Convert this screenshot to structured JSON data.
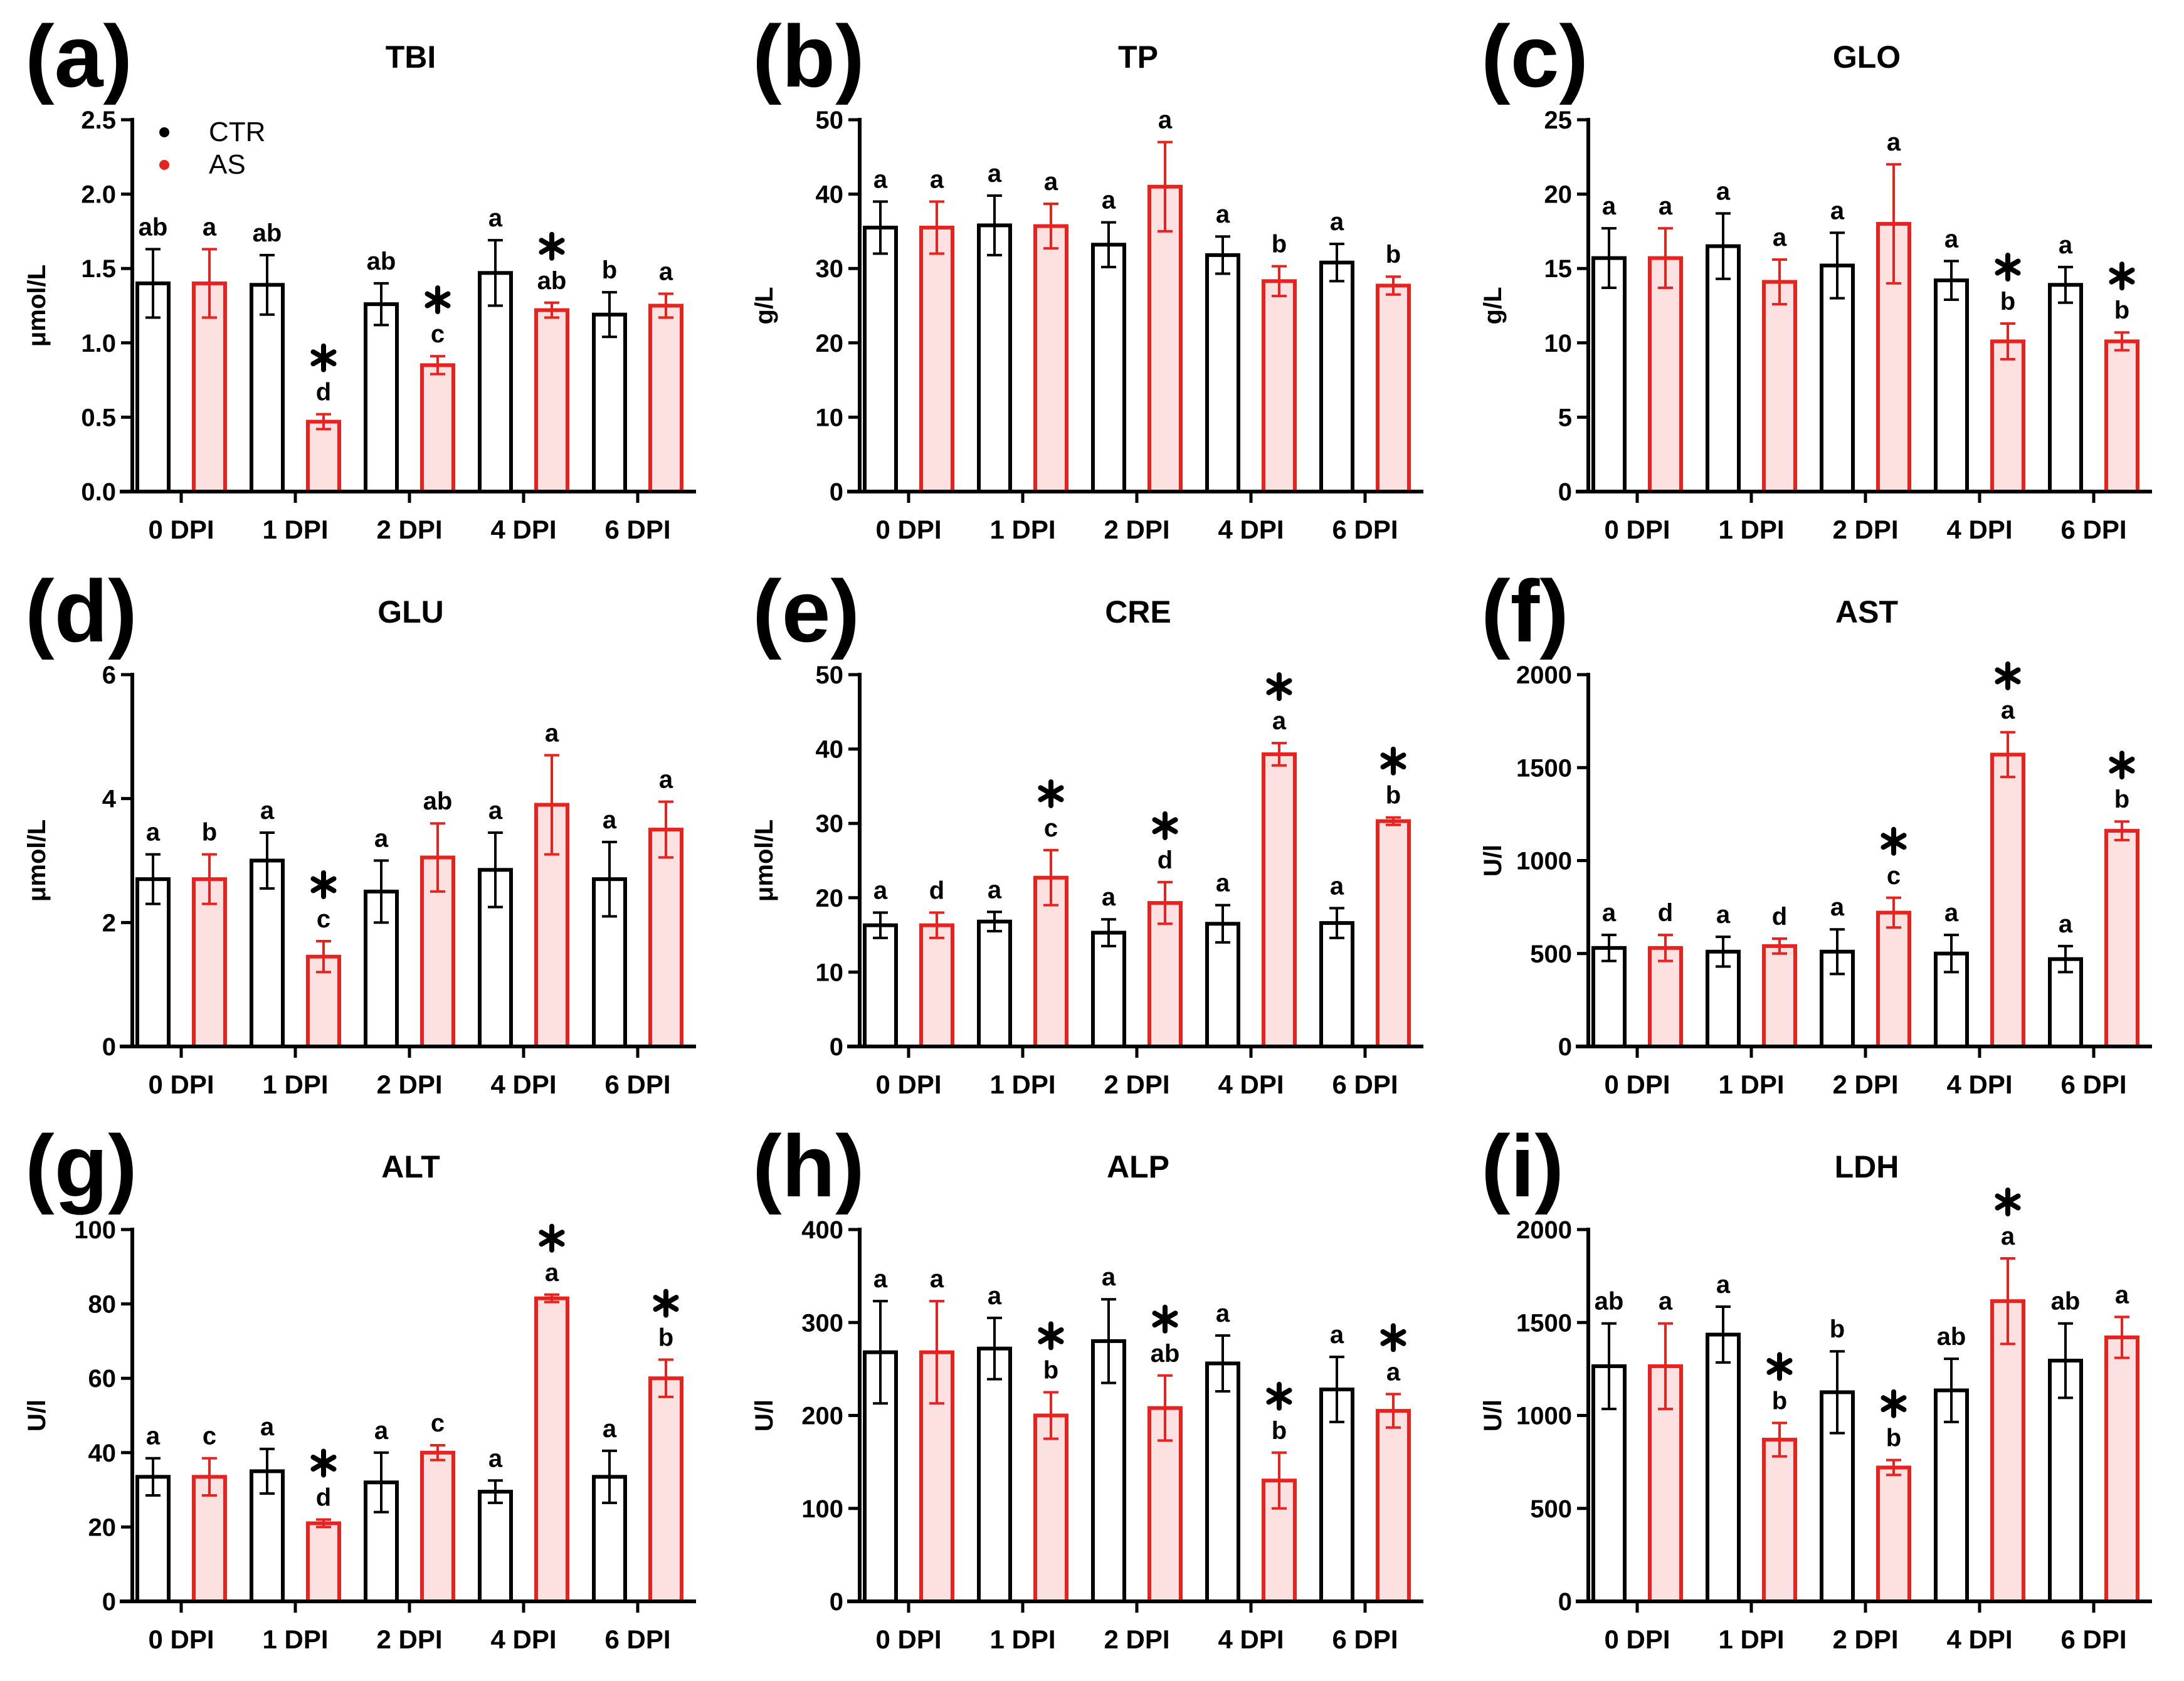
{
  "colors": {
    "ctr": "#000000",
    "as": "#e8231f",
    "as_fill": "#fde0e0",
    "ctr_fill": "#ffffff"
  },
  "legend": [
    {
      "label": "CTR",
      "color": "#000000"
    },
    {
      "label": "AS",
      "color": "#e8231f"
    }
  ],
  "chart_data": [
    {
      "type": "bar",
      "panel": "(a)",
      "title": "TBI",
      "ylabel": "μmol/L",
      "ylim": [
        0,
        2.5
      ],
      "yticks": [
        "0.0",
        "0.5",
        "1.0",
        "1.5",
        "2.0",
        "2.5"
      ],
      "ytick_values": [
        0,
        0.5,
        1,
        1.5,
        2,
        2.5
      ],
      "categories": [
        "0 DPI",
        "1 DPI",
        "2 DPI",
        "4 DPI",
        "6 DPI"
      ],
      "series": [
        {
          "name": "CTR",
          "values": [
            1.4,
            1.39,
            1.26,
            1.47,
            1.19
          ],
          "sd": [
            0.23,
            0.2,
            0.14,
            0.22,
            0.15
          ],
          "letters": [
            "ab",
            "ab",
            "ab",
            "a",
            "b"
          ],
          "stars": [
            false,
            false,
            false,
            false,
            false
          ]
        },
        {
          "name": "AS",
          "values": [
            1.4,
            0.47,
            0.85,
            1.22,
            1.25
          ],
          "sd": [
            0.23,
            0.05,
            0.06,
            0.05,
            0.08
          ],
          "letters": [
            "a",
            "d",
            "c",
            "ab",
            "a"
          ],
          "stars": [
            false,
            true,
            true,
            true,
            false
          ]
        }
      ]
    },
    {
      "type": "bar",
      "panel": "(b)",
      "title": "TP",
      "ylabel": "g/L",
      "ylim": [
        0,
        50
      ],
      "yticks": [
        "0",
        "10",
        "20",
        "30",
        "40",
        "50"
      ],
      "ytick_values": [
        0,
        10,
        20,
        30,
        40,
        50
      ],
      "categories": [
        "0 DPI",
        "1 DPI",
        "2 DPI",
        "4 DPI",
        "6 DPI"
      ],
      "series": [
        {
          "name": "CTR",
          "values": [
            35.5,
            35.8,
            33.2,
            31.8,
            30.8
          ],
          "sd": [
            3.5,
            4,
            3,
            2.5,
            2.5
          ],
          "letters": [
            "a",
            "a",
            "a",
            "a",
            "a"
          ],
          "stars": [
            false,
            false,
            false,
            false,
            false
          ]
        },
        {
          "name": "AS",
          "values": [
            35.5,
            35.7,
            41,
            28.3,
            27.7
          ],
          "sd": [
            3.5,
            3,
            6,
            2,
            1.2
          ],
          "letters": [
            "a",
            "a",
            "a",
            "b",
            "b"
          ],
          "stars": [
            false,
            false,
            false,
            false,
            false
          ]
        }
      ]
    },
    {
      "type": "bar",
      "panel": "(c)",
      "title": "GLO",
      "ylabel": "g/L",
      "ylim": [
        0,
        25
      ],
      "yticks": [
        "0",
        "5",
        "10",
        "15",
        "20",
        "25"
      ],
      "ytick_values": [
        0,
        5,
        10,
        15,
        20,
        25
      ],
      "categories": [
        "0 DPI",
        "1 DPI",
        "2 DPI",
        "4 DPI",
        "6 DPI"
      ],
      "series": [
        {
          "name": "CTR",
          "values": [
            15.7,
            16.5,
            15.2,
            14.2,
            13.9
          ],
          "sd": [
            2,
            2.2,
            2.2,
            1.3,
            1.2
          ],
          "letters": [
            "a",
            "a",
            "a",
            "a",
            "a"
          ],
          "stars": [
            false,
            false,
            false,
            false,
            false
          ]
        },
        {
          "name": "AS",
          "values": [
            15.7,
            14.1,
            18,
            10.1,
            10.1
          ],
          "sd": [
            2,
            1.5,
            4,
            1.2,
            0.6
          ],
          "letters": [
            "a",
            "a",
            "a",
            "b",
            "b"
          ],
          "stars": [
            false,
            false,
            false,
            true,
            true
          ]
        }
      ]
    },
    {
      "type": "bar",
      "panel": "(d)",
      "title": "GLU",
      "ylabel": "μmol/L",
      "ylim": [
        0,
        6
      ],
      "yticks": [
        "0",
        "2",
        "4",
        "6"
      ],
      "ytick_values": [
        0,
        2,
        4,
        6
      ],
      "categories": [
        "0 DPI",
        "1 DPI",
        "2 DPI",
        "4 DPI",
        "6 DPI"
      ],
      "series": [
        {
          "name": "CTR",
          "values": [
            2.7,
            3.0,
            2.5,
            2.85,
            2.7
          ],
          "sd": [
            0.4,
            0.45,
            0.5,
            0.6,
            0.6
          ],
          "letters": [
            "a",
            "a",
            "a",
            "a",
            "a"
          ],
          "stars": [
            false,
            false,
            false,
            false,
            false
          ]
        },
        {
          "name": "AS",
          "values": [
            2.7,
            1.45,
            3.05,
            3.9,
            3.5
          ],
          "sd": [
            0.4,
            0.25,
            0.55,
            0.8,
            0.45
          ],
          "letters": [
            "b",
            "c",
            "ab",
            "a",
            "a"
          ],
          "stars": [
            false,
            true,
            false,
            false,
            false
          ]
        }
      ]
    },
    {
      "type": "bar",
      "panel": "(e)",
      "title": "CRE",
      "ylabel": "μmol/L",
      "ylim": [
        0,
        50
      ],
      "yticks": [
        "0",
        "10",
        "20",
        "30",
        "40",
        "50"
      ],
      "ytick_values": [
        0,
        10,
        20,
        30,
        40,
        50
      ],
      "categories": [
        "0 DPI",
        "1 DPI",
        "2 DPI",
        "4 DPI",
        "6 DPI"
      ],
      "series": [
        {
          "name": "CTR",
          "values": [
            16.3,
            16.8,
            15.3,
            16.5,
            16.6
          ],
          "sd": [
            1.7,
            1.3,
            1.8,
            2.5,
            2
          ],
          "letters": [
            "a",
            "a",
            "a",
            "a",
            "a"
          ],
          "stars": [
            false,
            false,
            false,
            false,
            false
          ]
        },
        {
          "name": "AS",
          "values": [
            16.3,
            22.7,
            19.3,
            39.3,
            30.3
          ],
          "sd": [
            1.7,
            3.7,
            2.8,
            1.5,
            0.5
          ],
          "letters": [
            "d",
            "c",
            "d",
            "a",
            "b"
          ],
          "stars": [
            false,
            true,
            true,
            true,
            true
          ]
        }
      ]
    },
    {
      "type": "bar",
      "panel": "(f)",
      "title": "AST",
      "ylabel": "U/l",
      "ylim": [
        0,
        2000
      ],
      "yticks": [
        "0",
        "500",
        "1000",
        "1500",
        "2000"
      ],
      "ytick_values": [
        0,
        500,
        1000,
        1500,
        2000
      ],
      "categories": [
        "0 DPI",
        "1 DPI",
        "2 DPI",
        "4 DPI",
        "6 DPI"
      ],
      "series": [
        {
          "name": "CTR",
          "values": [
            530,
            510,
            510,
            500,
            470
          ],
          "sd": [
            70,
            80,
            120,
            100,
            70
          ],
          "letters": [
            "a",
            "a",
            "a",
            "a",
            "a"
          ],
          "stars": [
            false,
            false,
            false,
            false,
            false
          ]
        },
        {
          "name": "AS",
          "values": [
            530,
            540,
            720,
            1570,
            1160
          ],
          "sd": [
            70,
            40,
            80,
            120,
            50
          ],
          "letters": [
            "d",
            "d",
            "c",
            "a",
            "b"
          ],
          "stars": [
            false,
            false,
            true,
            true,
            true
          ]
        }
      ]
    },
    {
      "type": "bar",
      "panel": "(g)",
      "title": "ALT",
      "ylabel": "U/l",
      "ylim": [
        0,
        100
      ],
      "yticks": [
        "0",
        "20",
        "40",
        "60",
        "80",
        "100"
      ],
      "ytick_values": [
        0,
        20,
        40,
        60,
        80,
        100
      ],
      "categories": [
        "0 DPI",
        "1 DPI",
        "2 DPI",
        "4 DPI",
        "6 DPI"
      ],
      "series": [
        {
          "name": "CTR",
          "values": [
            33.5,
            35,
            32,
            29.5,
            33.5
          ],
          "sd": [
            5,
            6,
            8,
            3,
            7
          ],
          "letters": [
            "a",
            "a",
            "a",
            "a",
            "a"
          ],
          "stars": [
            false,
            false,
            false,
            false,
            false
          ]
        },
        {
          "name": "AS",
          "values": [
            33.5,
            21,
            40,
            81.5,
            60
          ],
          "sd": [
            5,
            1,
            2,
            1,
            5
          ],
          "letters": [
            "c",
            "d",
            "c",
            "a",
            "b"
          ],
          "stars": [
            false,
            true,
            false,
            true,
            true
          ]
        }
      ]
    },
    {
      "type": "bar",
      "panel": "(h)",
      "title": "ALP",
      "ylabel": "U/l",
      "ylim": [
        0,
        400
      ],
      "yticks": [
        "0",
        "100",
        "200",
        "300",
        "400"
      ],
      "ytick_values": [
        0,
        100,
        200,
        300,
        400
      ],
      "categories": [
        "0 DPI",
        "1 DPI",
        "2 DPI",
        "4 DPI",
        "6 DPI"
      ],
      "series": [
        {
          "name": "CTR",
          "values": [
            268,
            272,
            280,
            256,
            228
          ],
          "sd": [
            55,
            33,
            45,
            30,
            35
          ],
          "letters": [
            "a",
            "a",
            "a",
            "a",
            "a"
          ],
          "stars": [
            false,
            false,
            false,
            false,
            false
          ]
        },
        {
          "name": "AS",
          "values": [
            268,
            200,
            208,
            130,
            205
          ],
          "sd": [
            55,
            25,
            35,
            30,
            18
          ],
          "letters": [
            "a",
            "b",
            "ab",
            "b",
            "a"
          ],
          "stars": [
            false,
            true,
            true,
            true,
            true
          ]
        }
      ]
    },
    {
      "type": "bar",
      "panel": "(i)",
      "title": "LDH",
      "ylabel": "U/l",
      "ylim": [
        0,
        2000
      ],
      "yticks": [
        "0",
        "500",
        "1000",
        "1500",
        "2000"
      ],
      "ytick_values": [
        0,
        500,
        1000,
        1500,
        2000
      ],
      "categories": [
        "0 DPI",
        "1 DPI",
        "2 DPI",
        "4 DPI",
        "6 DPI"
      ],
      "series": [
        {
          "name": "CTR",
          "values": [
            1265,
            1435,
            1125,
            1135,
            1295
          ],
          "sd": [
            230,
            150,
            220,
            170,
            200
          ],
          "letters": [
            "ab",
            "a",
            "b",
            "ab",
            "ab"
          ],
          "stars": [
            false,
            false,
            false,
            false,
            false
          ]
        },
        {
          "name": "AS",
          "values": [
            1265,
            870,
            720,
            1615,
            1420
          ],
          "sd": [
            230,
            90,
            40,
            230,
            110
          ],
          "letters": [
            "a",
            "b",
            "b",
            "a",
            "a"
          ],
          "stars": [
            false,
            true,
            true,
            true,
            false
          ]
        }
      ]
    }
  ]
}
